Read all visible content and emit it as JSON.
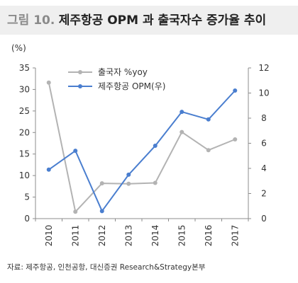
{
  "header": {
    "figure_label": "그림 10.",
    "title": "제주항공 OPM 과 출국자수 증가율 추이"
  },
  "source": "자료: 제주항공, 인천공항, 대신증권 Research&Strategy본부",
  "colors": {
    "departures": "#b3b3b3",
    "opm": "#4a7ecf",
    "axis": "#8c8c8c",
    "title_band": "#efefef"
  },
  "chart_data": {
    "type": "line",
    "categories": [
      "2010",
      "2011",
      "2012",
      "2013",
      "2014",
      "2015",
      "2016",
      "2017"
    ],
    "y_left": {
      "unit_label": "(%)",
      "min": 0,
      "max": 35,
      "ticks": [
        0,
        5,
        10,
        15,
        20,
        25,
        30,
        35
      ]
    },
    "y_right": {
      "min": 0,
      "max": 12,
      "ticks": [
        0,
        2,
        4,
        6,
        8,
        10,
        12
      ]
    },
    "series": [
      {
        "name": "출국자 %yoy",
        "axis": "left",
        "color": "#b3b3b3",
        "values": [
          31.6,
          1.6,
          8.2,
          8.1,
          8.3,
          20.1,
          15.9,
          18.4
        ]
      },
      {
        "name": "제주항공 OPM(우)",
        "axis": "right",
        "color": "#4a7ecf",
        "values": [
          3.9,
          5.4,
          0.6,
          3.5,
          5.8,
          8.5,
          7.9,
          10.2
        ]
      }
    ],
    "legend_position": "top-left",
    "grid": false,
    "x_labels_rotated": true
  }
}
